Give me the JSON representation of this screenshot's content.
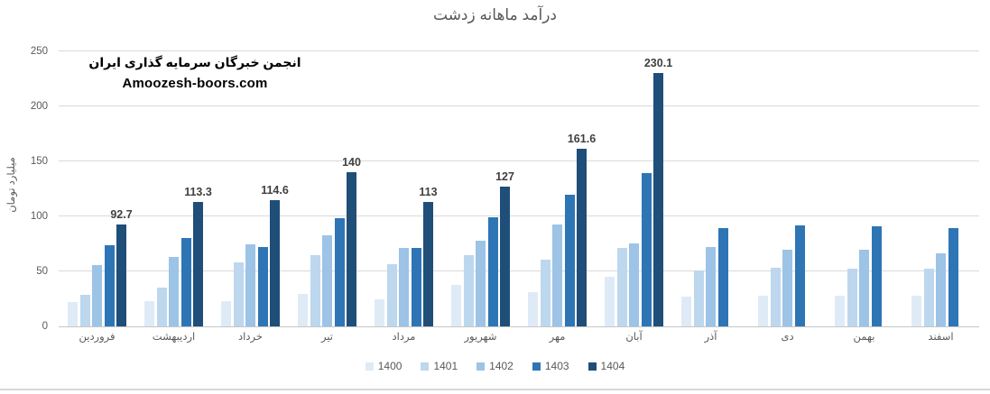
{
  "title": "درآمد ماهانه زدشت",
  "watermark": {
    "line1": "انجمن خبرگان سرمایه گذاری ایران",
    "line2": "Amoozesh-boors.com"
  },
  "colors": {
    "title_text": "#595959",
    "axis_text": "#595959",
    "gridline": "#d9d9d9",
    "data_label_text": "#404040",
    "watermark_text": "#000000"
  },
  "chart_data": {
    "type": "bar",
    "title": "درآمد ماهانه زدشت",
    "xlabel": "",
    "ylabel": "میلیارد تومان",
    "ylim": [
      0,
      250
    ],
    "yticks": [
      0,
      50,
      100,
      150,
      200,
      250
    ],
    "grid": "horizontal",
    "legend_position": "bottom",
    "categories": [
      "فروردین",
      "اردیبهشت",
      "خرداد",
      "تیر",
      "مرداد",
      "شهریور",
      "مهر",
      "آبان",
      "آذر",
      "دی",
      "بهمن",
      "اسفند"
    ],
    "series": [
      {
        "name": "1400",
        "color": "#DEEBF7",
        "values": [
          22,
          23,
          23,
          29.5,
          25,
          37.5,
          31.5,
          45,
          27,
          27.5,
          28,
          28
        ]
      },
      {
        "name": "1401",
        "color": "#BDD7EE",
        "values": [
          29,
          35,
          58,
          65,
          56.5,
          65,
          61,
          71,
          51,
          53,
          52.5,
          52.5
        ]
      },
      {
        "name": "1402",
        "color": "#9DC3E6",
        "values": [
          56,
          63,
          75,
          83,
          71,
          78,
          93,
          75.5,
          72.5,
          70,
          70,
          66
        ]
      },
      {
        "name": "1403",
        "color": "#2E75B6",
        "values": [
          73.5,
          80,
          72.5,
          98.5,
          71,
          99,
          120,
          139.5,
          89.5,
          91.5,
          91,
          89
        ]
      },
      {
        "name": "1404",
        "color": "#1F4E79",
        "data_labels": true,
        "values": [
          92.7,
          113.3,
          114.6,
          140,
          113,
          127,
          161.6,
          230.1,
          null,
          null,
          null,
          null
        ]
      }
    ]
  }
}
